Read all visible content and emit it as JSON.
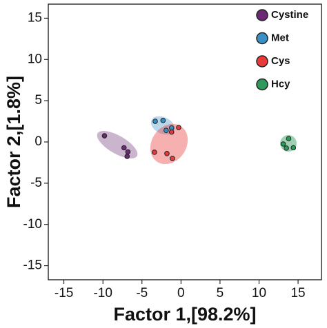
{
  "chart_data": {
    "type": "scatter",
    "x_label": "Factor 1,[98.2%]",
    "y_label": "Factor 2,[1.8%]",
    "xlim": [
      -17,
      18
    ],
    "ylim": [
      -16.7,
      16.7
    ],
    "xticks": [
      -15,
      -10,
      -5,
      0,
      5,
      10,
      15
    ],
    "yticks": [
      -15,
      -10,
      -5,
      0,
      5,
      10,
      15
    ],
    "legend_position": "upper right",
    "series": [
      {
        "name": "Cystine",
        "color": "#6b2a73",
        "x": [
          -9.8,
          -7.3,
          -6.8,
          -6.9
        ],
        "y": [
          0.75,
          -0.7,
          -1.2,
          -1.75
        ]
      },
      {
        "name": "Met",
        "color": "#3a90c6",
        "x": [
          -3.3,
          -2.3,
          -1.9,
          -1.2
        ],
        "y": [
          2.5,
          2.6,
          1.4,
          1.7
        ]
      },
      {
        "name": "Cys",
        "color": "#e83a3a",
        "x": [
          -0.3,
          -1.2,
          -3.4,
          -1.8,
          -1.1
        ],
        "y": [
          1.75,
          1.2,
          -1.25,
          -1.4,
          -2.0
        ]
      },
      {
        "name": "Hcy",
        "color": "#2e9a5a",
        "x": [
          13.1,
          13.8,
          14.4,
          13.5
        ],
        "y": [
          -0.25,
          0.4,
          -0.7,
          -0.75
        ]
      }
    ]
  }
}
